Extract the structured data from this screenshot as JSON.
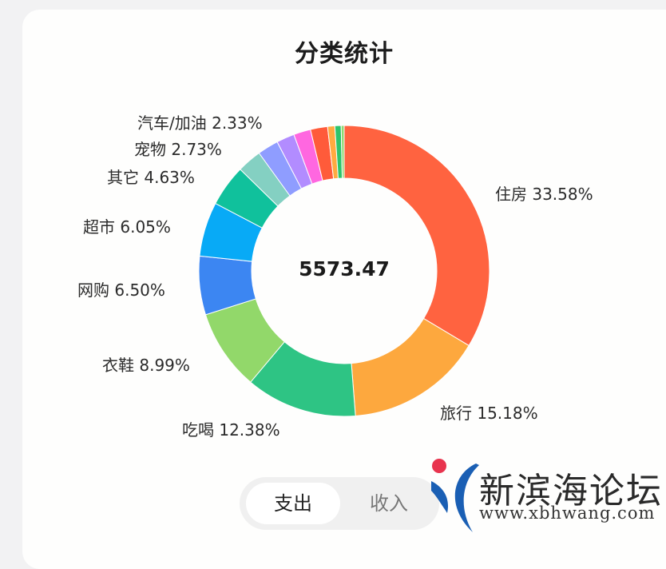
{
  "card": {
    "title": "分类统计",
    "total": "5573.47"
  },
  "toggle": {
    "options": [
      {
        "label": "支出",
        "active": true
      },
      {
        "label": "收入",
        "active": false
      }
    ]
  },
  "watermark": {
    "name": "新滨海论坛",
    "url": "www.xbhwang.com",
    "dot_color": "#e8344e",
    "arc_color": "#1a5fb4"
  },
  "labels": {
    "housing": "住房 33.58%",
    "travel": "旅行 15.18%",
    "food": "吃喝 12.38%",
    "clothing": "衣鞋 8.99%",
    "online": "网购 6.50%",
    "supermarket": "超市 6.05%",
    "other": "其它 4.63%",
    "pet": "宠物 2.73%",
    "car": "汽车/加油 2.33%"
  },
  "chart_data": {
    "type": "pie",
    "variant": "donut",
    "title": "分类统计",
    "center_label": "5573.47",
    "start": "12 o'clock, clockwise",
    "categories": [
      "住房",
      "旅行",
      "吃喝",
      "衣鞋",
      "网购",
      "超市",
      "其它",
      "宠物",
      "汽车/加油",
      "(unlabeled 1)",
      "(unlabeled 2)",
      "(unlabeled 3)",
      "(unlabeled 4)",
      "(unlabeled 5)",
      "(unlabeled 6)"
    ],
    "values": [
      33.58,
      15.18,
      12.38,
      8.99,
      6.5,
      6.05,
      4.63,
      2.73,
      2.33,
      2.0,
      1.9,
      1.9,
      0.8,
      0.7,
      0.33
    ],
    "colors": [
      "#ff6340",
      "#fda83e",
      "#2ec484",
      "#92d86a",
      "#3c86f2",
      "#08aaf6",
      "#10c19c",
      "#84d0c2",
      "#8f9dff",
      "#b28cff",
      "#ff67e0",
      "#ff5b3a",
      "#ffaa40",
      "#2ec46b",
      "#8fd870"
    ],
    "labeled_count": 9
  }
}
